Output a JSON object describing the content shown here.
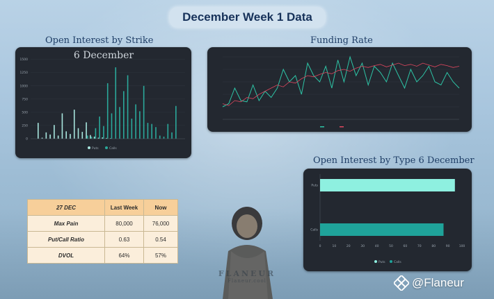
{
  "page_title": "December Week 1 Data",
  "sections": {
    "oi_strike_title": "Open Interest by Strike",
    "funding_title": "Funding Rate",
    "oi_type_title": "Open Interest by Type 6 December"
  },
  "oi_strike_chart": {
    "subtitle": "6 December",
    "legend": [
      "Puts",
      "Calls"
    ],
    "colors": {
      "puts": "#a8e6de",
      "calls": "#2ba99b"
    }
  },
  "funding_chart": {
    "colors": {
      "funding": "#2ec4a6",
      "price": "#e0475f"
    }
  },
  "chart_data": [
    {
      "type": "bar",
      "title": "6 December",
      "ylim": [
        0,
        1600
      ],
      "yticks": [
        "0",
        "250",
        "500",
        "750",
        "1000",
        "1250",
        "1500"
      ],
      "series": [
        {
          "name": "Puts",
          "values": [
            300,
            20,
            120,
            80,
            260,
            60,
            480,
            140,
            90,
            550,
            200,
            130,
            310,
            70,
            40,
            20,
            25,
            15,
            10,
            0,
            0,
            0,
            0,
            0,
            0,
            0,
            0,
            0,
            0,
            0,
            0,
            0,
            0,
            0,
            0
          ]
        },
        {
          "name": "Calls",
          "values": [
            0,
            0,
            0,
            0,
            0,
            0,
            0,
            0,
            0,
            0,
            0,
            0,
            60,
            40,
            200,
            420,
            240,
            1050,
            480,
            1350,
            600,
            900,
            1200,
            380,
            650,
            520,
            1000,
            300,
            280,
            220,
            60,
            40,
            280,
            120,
            620
          ]
        }
      ]
    },
    {
      "type": "line",
      "title": "",
      "series": [
        {
          "name": "",
          "values": [
            0.2,
            0.25,
            0.5,
            0.3,
            0.28,
            0.55,
            0.3,
            0.45,
            0.35,
            0.5,
            0.8,
            0.6,
            0.7,
            0.4,
            0.9,
            0.7,
            0.6,
            0.85,
            0.5,
            0.95,
            0.6,
            1.0,
            0.7,
            0.9,
            0.55,
            0.85,
            0.75,
            0.6,
            0.9,
            0.7,
            0.5,
            0.8,
            0.6,
            0.7,
            0.85,
            0.6,
            0.55,
            0.75,
            0.6,
            0.5
          ]
        },
        {
          "name": "",
          "values": [
            0.25,
            0.22,
            0.3,
            0.28,
            0.35,
            0.33,
            0.4,
            0.45,
            0.5,
            0.55,
            0.52,
            0.6,
            0.58,
            0.65,
            0.7,
            0.68,
            0.72,
            0.75,
            0.73,
            0.78,
            0.8,
            0.77,
            0.82,
            0.85,
            0.83,
            0.86,
            0.88,
            0.84,
            0.87,
            0.9,
            0.86,
            0.88,
            0.85,
            0.9,
            0.87,
            0.84,
            0.88,
            0.86,
            0.83,
            0.85
          ]
        }
      ]
    },
    {
      "type": "bar",
      "title": "Open Interest by Type 6 December",
      "orientation": "horizontal",
      "categories": [
        "Puts",
        "Calls"
      ],
      "values": [
        95,
        87
      ],
      "xlim": [
        0,
        100
      ],
      "xticks": [
        "0",
        "10",
        "20",
        "30",
        "40",
        "50",
        "60",
        "70",
        "80",
        "90",
        "100"
      ],
      "legend": [
        "Puts",
        "Calls"
      ],
      "colors": {
        "puts": "#8ef0e0",
        "calls": "#1fa39a"
      }
    }
  ],
  "table": {
    "headers": [
      "27 DEC",
      "Last Week",
      "Now"
    ],
    "rows": [
      [
        "Max Pain",
        "80,000",
        "76,000"
      ],
      [
        "Put/Call Ratio",
        "0.63",
        "0.54"
      ],
      [
        "DVOL",
        "64%",
        "57%"
      ]
    ]
  },
  "brand": {
    "name": "FLANEUR",
    "sub": "Flaneur.cool"
  },
  "handle": "@Flaneur"
}
